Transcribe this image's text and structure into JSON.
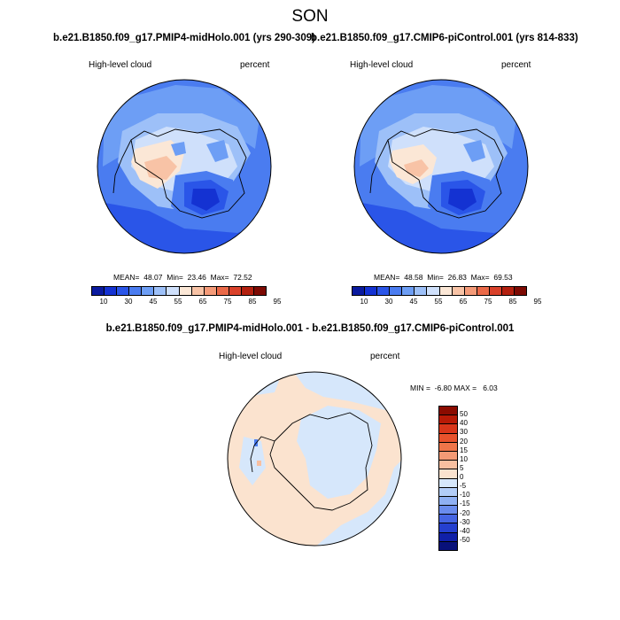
{
  "figure": {
    "season": "SON",
    "test_case": "b.e21.B1850.f09_g17.PMIP4-midHolo.001 (yrs 290-309)",
    "control_case": "b.e21.B1850.f09_g17.CMIP6-piControl.001 (yrs 814-833)",
    "diff_title": "b.e21.B1850.f09_g17.PMIP4-midHolo.001 - b.e21.B1850.f09_g17.CMIP6-piControl.001"
  },
  "panels": {
    "test": {
      "variable": "High-level cloud",
      "units": "percent",
      "stats": "MEAN=  48.07  Min=  23.46  Max=  72.52"
    },
    "control": {
      "variable": "High-level cloud",
      "units": "percent",
      "stats": "MEAN=  48.58  Min=  26.83  Max=  69.53"
    },
    "diff": {
      "variable": "High-level cloud",
      "units": "percent",
      "stats": "MIN =  -6.80 MAX =   6.03"
    }
  },
  "colorbar_abs": {
    "labels": [
      "10",
      "30",
      "45",
      "55",
      "65",
      "75",
      "85",
      "95"
    ],
    "colors": [
      "#0a1a9e",
      "#1432d2",
      "#2a55e8",
      "#4a7cf0",
      "#6d9ef5",
      "#9dc0f8",
      "#cfe0fb",
      "#fbe7d6",
      "#f8c3a6",
      "#f49a78",
      "#ea6948",
      "#d9412a",
      "#b3200f",
      "#7d0a03"
    ]
  },
  "colorbar_diff": {
    "labels": [
      "50",
      "40",
      "30",
      "20",
      "15",
      "10",
      "5",
      "0",
      "-5",
      "-10",
      "-15",
      "-20",
      "-30",
      "-40",
      "-50"
    ],
    "colors": [
      "#8b0b00",
      "#b81a06",
      "#d9361a",
      "#e8522c",
      "#f07549",
      "#f49a75",
      "#f8bfa0",
      "#fbe3cf",
      "#d6e7fb",
      "#b2cdf8",
      "#8fb0f3",
      "#6a8ced",
      "#4565e3",
      "#2540cf",
      "#1020a8",
      "#08117a"
    ]
  }
}
